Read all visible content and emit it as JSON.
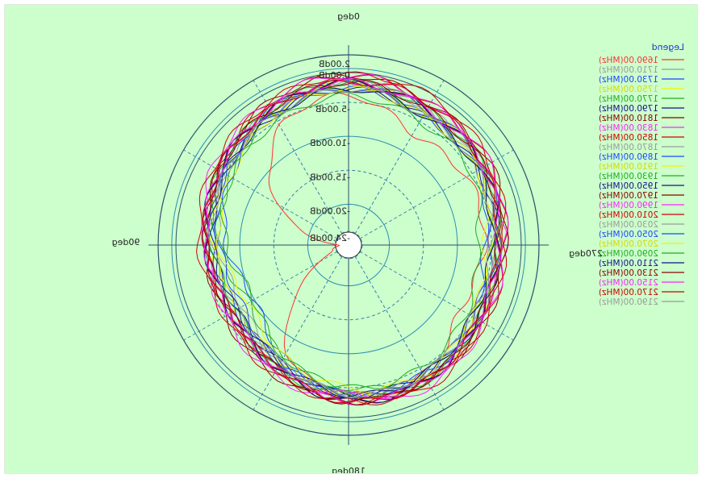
{
  "chart_data": {
    "type": "polar-line",
    "title": "",
    "angle_labels": [
      {
        "deg": 0,
        "text": "0deg"
      },
      {
        "deg": 90,
        "text": "90deg"
      },
      {
        "deg": 180,
        "text": "180deg"
      },
      {
        "deg": 270,
        "text": "270deg"
      }
    ],
    "radial_labels": [
      "2.00dB",
      "0.00dB",
      "-5.00dB",
      "-10.00dB",
      "-15.00dB",
      "-20.00dB",
      "-24.00dB"
    ],
    "radial_values_db": [
      2,
      0,
      -5,
      -10,
      -15,
      -20,
      -24
    ],
    "rlim_db": [
      -26,
      2
    ],
    "grid": true,
    "legend": {
      "title": "Legend",
      "placement": "right",
      "entries": [
        {
          "label": "1690.00(MHz)",
          "color": "#ff3333"
        },
        {
          "label": "1710.00(MHz)",
          "color": "#9a9a9a"
        },
        {
          "label": "1730.00(MHz)",
          "color": "#2244ff"
        },
        {
          "label": "1750.00(MHz)",
          "color": "#f2f200"
        },
        {
          "label": "1770.00(MHz)",
          "color": "#22aa22"
        },
        {
          "label": "1790.00(MHz)",
          "color": "#111188"
        },
        {
          "label": "1810.00(MHz)",
          "color": "#880000"
        },
        {
          "label": "1830.00(MHz)",
          "color": "#ff22ff"
        },
        {
          "label": "1850.00(MHz)",
          "color": "#cc0000"
        },
        {
          "label": "1870.00(MHz)",
          "color": "#9a9a9a"
        },
        {
          "label": "1890.00(MHz)",
          "color": "#2244ff"
        },
        {
          "label": "1910.00(MHz)",
          "color": "#f2f200"
        },
        {
          "label": "1930.00(MHz)",
          "color": "#22aa22"
        },
        {
          "label": "1950.00(MHz)",
          "color": "#111188"
        },
        {
          "label": "1970.00(MHz)",
          "color": "#880000"
        },
        {
          "label": "1990.00(MHz)",
          "color": "#ff22ff"
        },
        {
          "label": "2010.00(MHz)",
          "color": "#cc0000"
        },
        {
          "label": "2030.00(MHz)",
          "color": "#9a9a9a"
        },
        {
          "label": "2050.00(MHz)",
          "color": "#2244ff"
        },
        {
          "label": "2070.00(MHz)",
          "color": "#f2f200"
        },
        {
          "label": "2090.00(MHz)",
          "color": "#22aa22"
        },
        {
          "label": "2110.00(MHz)",
          "color": "#111188"
        },
        {
          "label": "2130.00(MHz)",
          "color": "#880000"
        },
        {
          "label": "2150.00(MHz)",
          "color": "#ff22ff"
        },
        {
          "label": "2170.00(MHz)",
          "color": "#cc0000"
        },
        {
          "label": "2190.00(MHz)",
          "color": "#9a9a9a"
        }
      ]
    },
    "series_pattern_db_at_angles": {
      "angles_deg": [
        0,
        30,
        60,
        90,
        120,
        150,
        180,
        210,
        240,
        270,
        300,
        330
      ],
      "series": [
        {
          "name": "1690.00(MHz)",
          "values": [
            -4,
            -6,
            -14,
            -24,
            -21,
            -8,
            -4,
            -4,
            -7,
            -6,
            -6,
            -7
          ]
        },
        {
          "name": "1710.00(MHz)",
          "values": [
            -2,
            -3,
            -5,
            -5,
            -6,
            -6,
            -4,
            -3,
            -4,
            -4,
            -3,
            -3
          ]
        },
        {
          "name": "1730.00(MHz)",
          "values": [
            -3,
            -4,
            -6,
            -8,
            -10,
            -7,
            -4,
            -4,
            -5,
            -5,
            -4,
            -4
          ]
        },
        {
          "name": "1750.00(MHz)",
          "values": [
            -2,
            -3,
            -5,
            -6,
            -7,
            -6,
            -4,
            -3,
            -4,
            -4,
            -3,
            -3
          ]
        },
        {
          "name": "1770.00(MHz)",
          "values": [
            -3,
            -4,
            -6,
            -7,
            -9,
            -7,
            -5,
            -4,
            -5,
            -5,
            -4,
            -4
          ]
        },
        {
          "name": "1790.00(MHz)",
          "values": [
            -3,
            -4,
            -5,
            -6,
            -7,
            -6,
            -4,
            -4,
            -4,
            -4,
            -4,
            -4
          ]
        },
        {
          "name": "1810.00(MHz)",
          "values": [
            -2,
            -3,
            -4,
            -5,
            -6,
            -5,
            -3,
            -3,
            -4,
            -4,
            -3,
            -3
          ]
        },
        {
          "name": "1830.00(MHz)",
          "values": [
            -2,
            -3,
            -4,
            -5,
            -6,
            -5,
            -3,
            -3,
            -4,
            -3,
            -3,
            -2
          ]
        },
        {
          "name": "1850.00(MHz)",
          "values": [
            -1,
            -2,
            -4,
            -5,
            -6,
            -5,
            -3,
            -3,
            -3,
            -3,
            -2,
            -2
          ]
        },
        {
          "name": "1870.00(MHz)",
          "values": [
            -2,
            -4,
            -5,
            -7,
            -8,
            -6,
            -4,
            -4,
            -5,
            -5,
            -4,
            -3
          ]
        },
        {
          "name": "1890.00(MHz)",
          "values": [
            -2,
            -3,
            -5,
            -6,
            -7,
            -6,
            -4,
            -4,
            -4,
            -4,
            -3,
            -3
          ]
        },
        {
          "name": "1910.00(MHz)",
          "values": [
            -3,
            -4,
            -5,
            -6,
            -8,
            -6,
            -4,
            -4,
            -5,
            -5,
            -4,
            -4
          ]
        },
        {
          "name": "1930.00(MHz)",
          "values": [
            -2,
            -3,
            -4,
            -6,
            -7,
            -5,
            -4,
            -3,
            -4,
            -4,
            -3,
            -3
          ]
        },
        {
          "name": "1950.00(MHz)",
          "values": [
            -2,
            -3,
            -4,
            -5,
            -6,
            -5,
            -3,
            -3,
            -4,
            -4,
            -3,
            -3
          ]
        },
        {
          "name": "1970.00(MHz)",
          "values": [
            -1,
            -2,
            -4,
            -5,
            -5,
            -4,
            -3,
            -3,
            -3,
            -3,
            -2,
            -2
          ]
        },
        {
          "name": "1990.00(MHz)",
          "values": [
            -1,
            -2,
            -3,
            -5,
            -5,
            -4,
            -3,
            -2,
            -3,
            -3,
            -2,
            -2
          ]
        },
        {
          "name": "2010.00(MHz)",
          "values": [
            -1,
            -2,
            -3,
            -4,
            -5,
            -4,
            -3,
            -2,
            -3,
            -3,
            -2,
            -1
          ]
        },
        {
          "name": "2030.00(MHz)",
          "values": [
            -2,
            -3,
            -4,
            -5,
            -6,
            -5,
            -4,
            -3,
            -4,
            -4,
            -3,
            -3
          ]
        },
        {
          "name": "2050.00(MHz)",
          "values": [
            -3,
            -4,
            -5,
            -7,
            -8,
            -6,
            -4,
            -4,
            -5,
            -6,
            -4,
            -4
          ]
        },
        {
          "name": "2070.00(MHz)",
          "values": [
            -3,
            -4,
            -6,
            -7,
            -9,
            -7,
            -5,
            -4,
            -5,
            -6,
            -4,
            -4
          ]
        },
        {
          "name": "2090.00(MHz)",
          "values": [
            -4,
            -5,
            -6,
            -8,
            -10,
            -7,
            -5,
            -5,
            -6,
            -7,
            -5,
            -5
          ]
        },
        {
          "name": "2110.00(MHz)",
          "values": [
            -3,
            -4,
            -5,
            -6,
            -7,
            -6,
            -4,
            -4,
            -5,
            -5,
            -4,
            -4
          ]
        },
        {
          "name": "2130.00(MHz)",
          "values": [
            -2,
            -3,
            -4,
            -5,
            -6,
            -5,
            -3,
            -3,
            -4,
            -4,
            -3,
            -3
          ]
        },
        {
          "name": "2150.00(MHz)",
          "values": [
            -2,
            -3,
            -4,
            -5,
            -6,
            -5,
            -4,
            -3,
            -4,
            -4,
            -3,
            -3
          ]
        },
        {
          "name": "2170.00(MHz)",
          "values": [
            -2,
            -3,
            -4,
            -5,
            -6,
            -5,
            -3,
            -3,
            -4,
            -4,
            -3,
            -2
          ]
        },
        {
          "name": "2190.00(MHz)",
          "values": [
            -3,
            -4,
            -5,
            -6,
            -7,
            -6,
            -4,
            -4,
            -5,
            -5,
            -4,
            -4
          ]
        }
      ]
    }
  }
}
